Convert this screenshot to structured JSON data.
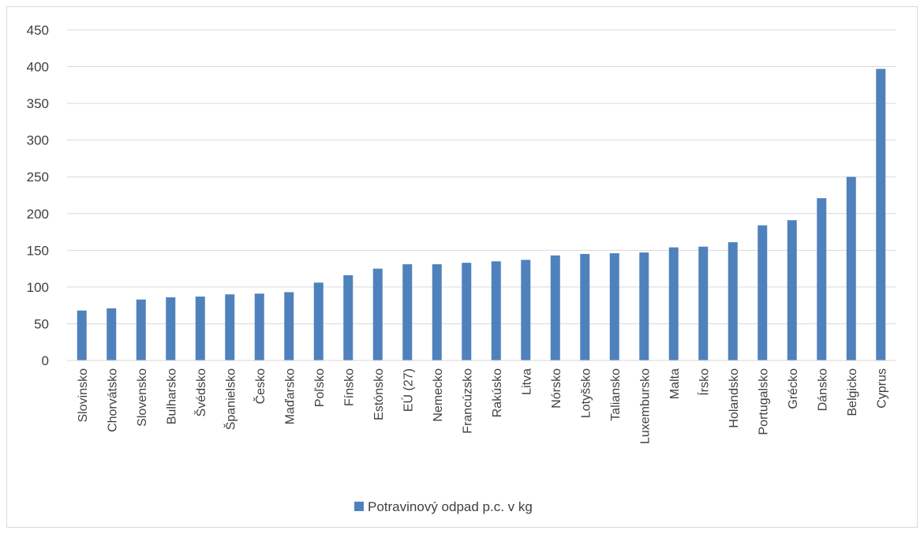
{
  "chart_data": {
    "type": "bar",
    "categories": [
      "Slovinsko",
      "Chorvátsko",
      "Slovensko",
      "Bulharsko",
      "Švédsko",
      "Španielsko",
      "Česko",
      "Maďarsko",
      "Poľsko",
      "Fínsko",
      "Estónsko",
      "EÚ (27)",
      "Nemecko",
      "Francúzsko",
      "Rakúsko",
      "Litva",
      "Nórsko",
      "Lotyšsko",
      "Taliansko",
      "Luxembursko",
      "Malta",
      "Írsko",
      "Holandsko",
      "Portugalsko",
      "Grécko",
      "Dánsko",
      "Belgicko",
      "Cyprus"
    ],
    "series": [
      {
        "name": "Potravinový odpad p.c. v kg",
        "values": [
          68,
          71,
          83,
          86,
          87,
          90,
          91,
          93,
          106,
          116,
          125,
          131,
          131,
          133,
          135,
          137,
          143,
          145,
          146,
          147,
          154,
          155,
          161,
          184,
          191,
          221,
          250,
          397
        ],
        "color": "#4f81bd"
      }
    ],
    "ylim": [
      0,
      450
    ],
    "yticks": [
      0,
      50,
      100,
      150,
      200,
      250,
      300,
      350,
      400,
      450
    ],
    "grid": true,
    "legend": "bottom"
  }
}
